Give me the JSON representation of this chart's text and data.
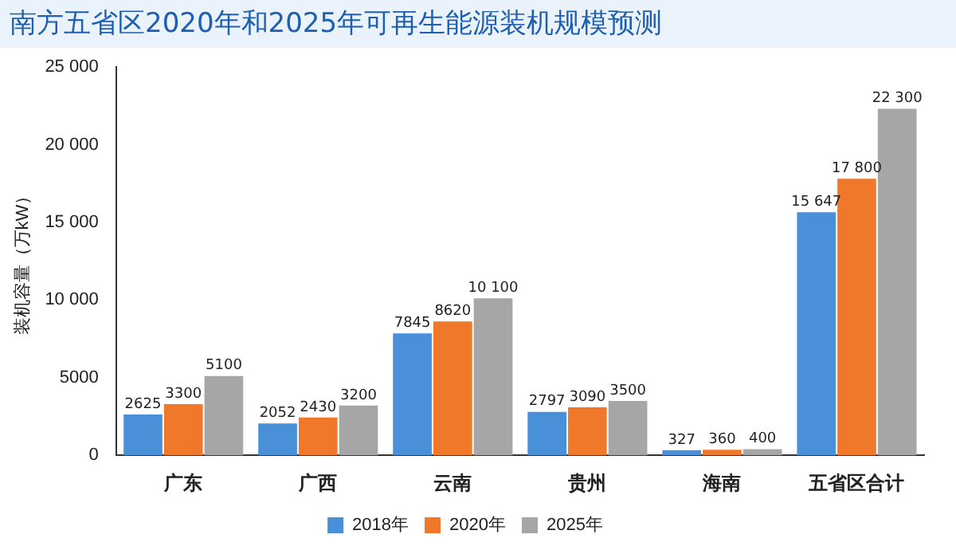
{
  "chart_data": {
    "type": "bar",
    "title": "南方五省区2020年和2025年可再生能源装机规模预测",
    "ylabel": "装机容量（万kW）",
    "categories": [
      "广东",
      "广西",
      "云南",
      "贵州",
      "海南",
      "五省区合计"
    ],
    "series": [
      {
        "name": "2018年",
        "color": "#4a90d9",
        "values": [
          2625,
          2052,
          7845,
          2797,
          327,
          15647
        ],
        "value_labels": [
          "2625",
          "2052",
          "7845",
          "2797",
          "327",
          "15 647"
        ]
      },
      {
        "name": "2020年",
        "color": "#f0782a",
        "values": [
          3300,
          2430,
          8620,
          3090,
          360,
          17800
        ],
        "value_labels": [
          "3300",
          "2430",
          "8620",
          "3090",
          "360",
          "17 800"
        ]
      },
      {
        "name": "2025年",
        "color": "#a6a6a6",
        "values": [
          5100,
          3200,
          10100,
          3500,
          400,
          22300
        ],
        "value_labels": [
          "5100",
          "3200",
          "10 100",
          "3500",
          "400",
          "22 300"
        ]
      }
    ],
    "ylim": [
      0,
      25000
    ],
    "yticks": [
      0,
      5000,
      {
        "value": 10000,
        "label": "10 000"
      },
      {
        "value": 15000,
        "label": "15 000"
      },
      {
        "value": 20000,
        "label": "20 000"
      },
      {
        "value": 25000,
        "label": "25 000"
      }
    ],
    "grid": false,
    "legend": "bottom"
  }
}
